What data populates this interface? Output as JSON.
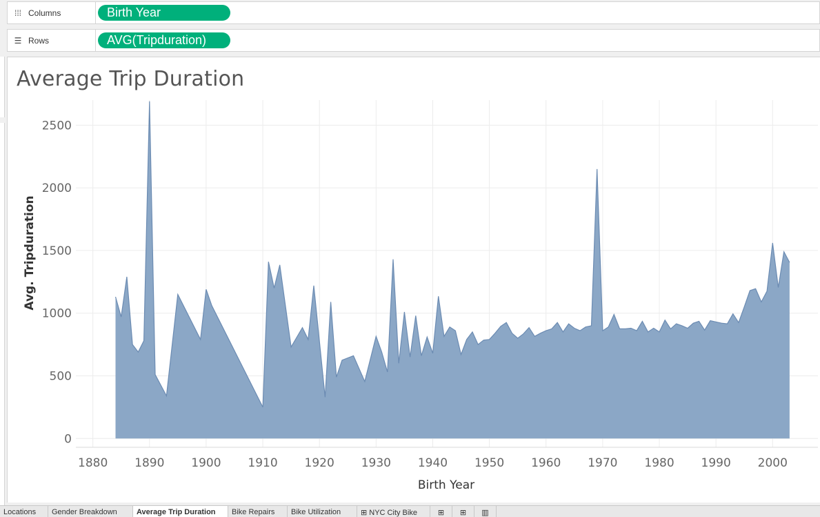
{
  "shelves": {
    "columns": {
      "label": "Columns",
      "icon": "columns-icon",
      "pill": "Birth Year"
    },
    "rows": {
      "label": "Rows",
      "icon": "rows-icon",
      "pill": "AVG(Tripduration)"
    }
  },
  "tabs": [
    {
      "label": "Locations",
      "active": false
    },
    {
      "label": "Gender Breakdown",
      "active": false
    },
    {
      "label": "Average Trip Duration",
      "active": true
    },
    {
      "label": "Bike Repairs",
      "active": false
    },
    {
      "label": "Bike Utilization",
      "active": false
    },
    {
      "label": "NYC City Bike",
      "active": false,
      "icon": "dashboard-icon"
    }
  ],
  "tab_icons": [
    "new-worksheet-icon",
    "new-dashboard-icon",
    "new-story-icon"
  ],
  "chart_data": {
    "type": "area",
    "title": "Average Trip Duration",
    "xlabel": "Birth Year",
    "ylabel": "Avg. Tripduration",
    "xlim": [
      1877,
      2008
    ],
    "ylim": [
      -70,
      2700
    ],
    "xticks": [
      1880,
      1890,
      1900,
      1910,
      1920,
      1930,
      1940,
      1950,
      1960,
      1970,
      1980,
      1990,
      2000
    ],
    "yticks": [
      0,
      500,
      1000,
      1500,
      2000,
      2500
    ],
    "grid": true,
    "color": "#8ba7c6",
    "line_color": "#6b8bb2",
    "series": [
      {
        "x": [
          1884,
          1885,
          1886,
          1887,
          1888,
          1889,
          1890,
          1891,
          1893,
          1895,
          1899,
          1900,
          1901,
          1910,
          1911,
          1912,
          1913,
          1915,
          1917,
          1918,
          1919,
          1921,
          1922,
          1923,
          1924,
          1926,
          1928,
          1930,
          1931,
          1932,
          1933,
          1934,
          1935,
          1936,
          1937,
          1938,
          1939,
          1940,
          1941,
          1942,
          1943,
          1944,
          1945,
          1946,
          1947,
          1948,
          1949,
          1950,
          1951,
          1952,
          1953,
          1954,
          1955,
          1956,
          1957,
          1958,
          1959,
          1960,
          1961,
          1962,
          1963,
          1964,
          1965,
          1966,
          1967,
          1968,
          1969,
          1970,
          1971,
          1972,
          1973,
          1974,
          1975,
          1976,
          1977,
          1978,
          1979,
          1980,
          1981,
          1982,
          1983,
          1984,
          1985,
          1986,
          1987,
          1988,
          1989,
          1990,
          1991,
          1992,
          1993,
          1994,
          1995,
          1996,
          1997,
          1998,
          1999,
          2000,
          2001,
          2002,
          2003
        ],
        "y": [
          1130,
          970,
          1290,
          750,
          690,
          780,
          2690,
          510,
          340,
          1150,
          790,
          1190,
          1060,
          250,
          1410,
          1200,
          1385,
          730,
          885,
          790,
          1220,
          330,
          1090,
          490,
          625,
          660,
          455,
          815,
          690,
          530,
          1430,
          600,
          1010,
          650,
          980,
          660,
          810,
          680,
          1135,
          815,
          890,
          860,
          670,
          790,
          850,
          750,
          785,
          790,
          840,
          895,
          925,
          840,
          800,
          835,
          885,
          815,
          840,
          860,
          875,
          925,
          850,
          915,
          880,
          860,
          890,
          900,
          2150,
          860,
          890,
          990,
          875,
          875,
          880,
          860,
          935,
          850,
          880,
          850,
          945,
          875,
          915,
          900,
          880,
          920,
          935,
          865,
          940,
          930,
          920,
          915,
          995,
          925,
          1050,
          1180,
          1195,
          1090,
          1175,
          1560,
          1205,
          1490,
          1405
        ]
      }
    ]
  }
}
